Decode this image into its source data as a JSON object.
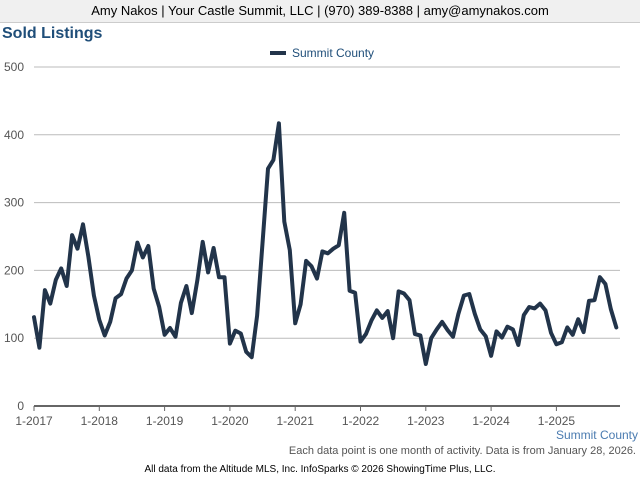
{
  "header": {
    "text": "Amy Nakos | Your Castle Summit, LLC | (970) 389-8388 | amy@amynakos.com"
  },
  "footer": {
    "note": "Each data point is one month of activity. Data is from January 28, 2026.",
    "credit": "All data from the Altitude MLS, Inc. InfoSparks © 2026 ShowingTime Plus, LLC."
  },
  "chart_data": {
    "type": "line",
    "title": "Sold Listings",
    "xlabel": "",
    "ylabel": "",
    "ylim": [
      0,
      500
    ],
    "yticks": [
      0,
      100,
      200,
      300,
      400,
      500
    ],
    "xticks": [
      "1-2017",
      "1-2018",
      "1-2019",
      "1-2020",
      "1-2021",
      "1-2022",
      "1-2023",
      "1-2024",
      "1-2025"
    ],
    "x_start": "1-2017",
    "x_end": "12-2025",
    "grid": true,
    "legend": "top-center",
    "series_label": "Summit County",
    "series": [
      {
        "name": "Summit County",
        "color": "#22344a",
        "values": [
          131,
          86,
          171,
          151,
          186,
          203,
          177,
          252,
          232,
          268,
          220,
          163,
          127,
          104,
          124,
          159,
          165,
          188,
          200,
          241,
          219,
          236,
          173,
          146,
          105,
          115,
          102,
          152,
          177,
          137,
          185,
          242,
          197,
          233,
          190,
          190,
          92,
          111,
          107,
          80,
          72,
          133,
          240,
          350,
          363,
          417,
          272,
          230,
          122,
          150,
          214,
          206,
          188,
          228,
          225,
          232,
          237,
          285,
          170,
          167,
          95,
          106,
          126,
          141,
          130,
          140,
          100,
          169,
          166,
          156,
          106,
          104,
          62,
          100,
          113,
          124,
          112,
          102,
          136,
          163,
          165,
          136,
          113,
          103,
          74,
          110,
          101,
          117,
          113,
          90,
          134,
          146,
          144,
          151,
          141,
          108,
          91,
          94,
          116,
          105,
          128,
          109,
          155,
          156,
          190,
          180,
          143,
          116
        ]
      }
    ]
  }
}
